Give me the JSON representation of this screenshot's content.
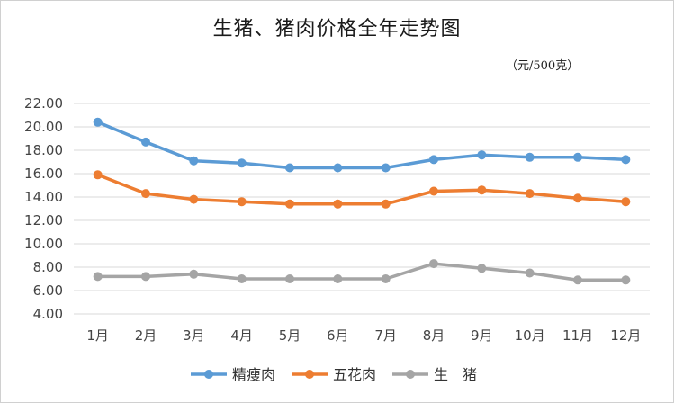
{
  "chart_data": {
    "type": "line",
    "title": "生猪、猪肉价格全年走势图",
    "unit_label": "（元/500克）",
    "categories": [
      "1月",
      "2月",
      "3月",
      "4月",
      "5月",
      "6月",
      "7月",
      "8月",
      "9月",
      "10月",
      "11月",
      "12月"
    ],
    "y_ticks": [
      "22.00",
      "20.00",
      "18.00",
      "16.00",
      "14.00",
      "12.00",
      "10.00",
      "8.00",
      "6.00",
      "4.00"
    ],
    "ylim": [
      4,
      22
    ],
    "grid": true,
    "legend_position": "bottom",
    "series": [
      {
        "name": "精瘦肉",
        "color": "#5b9bd5",
        "values": [
          20.4,
          18.7,
          17.1,
          16.9,
          16.5,
          16.5,
          16.5,
          17.2,
          17.6,
          17.4,
          17.4,
          17.2
        ]
      },
      {
        "name": "五花肉",
        "color": "#ed7d31",
        "values": [
          15.9,
          14.3,
          13.8,
          13.6,
          13.4,
          13.4,
          13.4,
          14.5,
          14.6,
          14.3,
          13.9,
          13.6
        ]
      },
      {
        "name": "生　猪",
        "color": "#a5a5a5",
        "values": [
          7.2,
          7.2,
          7.4,
          7.0,
          7.0,
          7.0,
          7.0,
          8.3,
          7.9,
          7.5,
          6.9,
          6.9
        ]
      }
    ]
  }
}
